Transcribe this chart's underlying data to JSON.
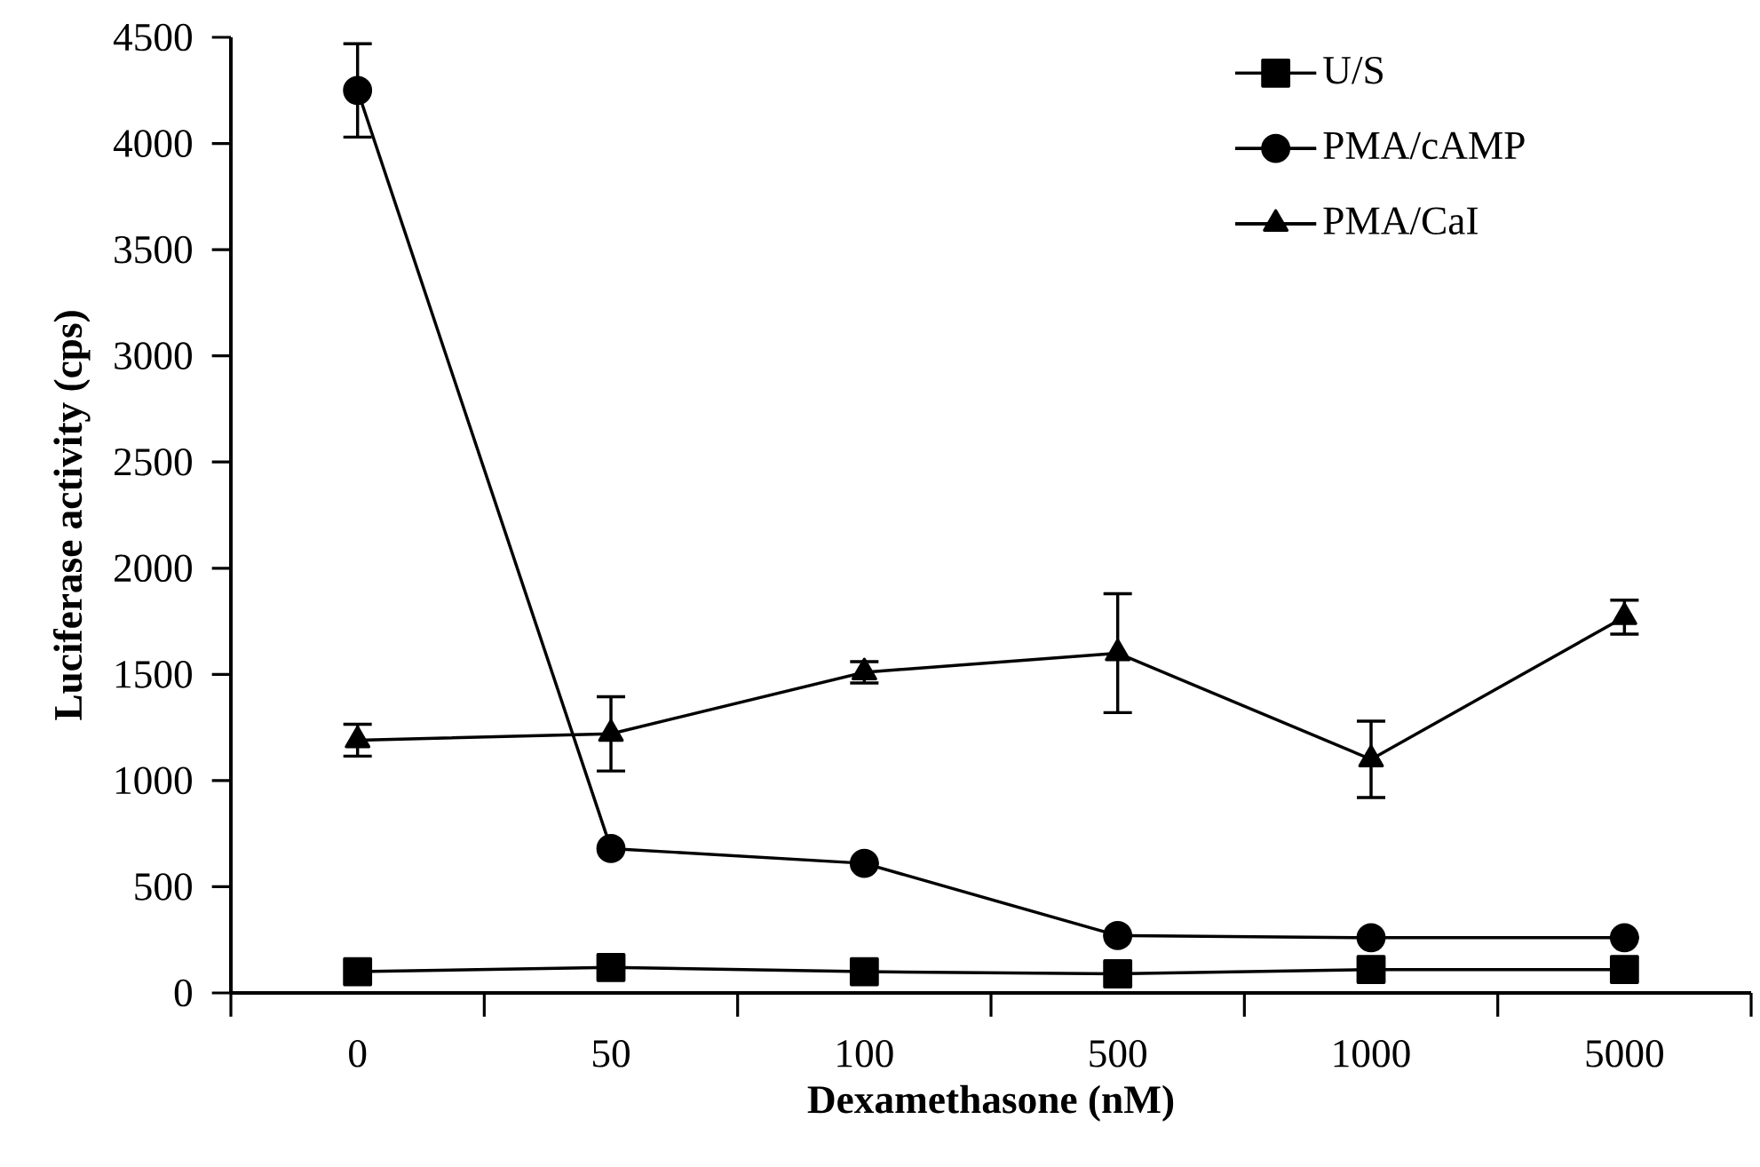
{
  "chart_data": {
    "type": "line",
    "xlabel": "Dexamethasone (nM)",
    "ylabel": "Luciferase activity (cps)",
    "categories": [
      "0",
      "50",
      "100",
      "500",
      "1000",
      "5000"
    ],
    "ylim": [
      0,
      4500
    ],
    "yticks": [
      0,
      500,
      1000,
      1500,
      2000,
      2500,
      3000,
      3500,
      4000,
      4500
    ],
    "grid": false,
    "legend": "top right",
    "line_style": "solid",
    "series": [
      {
        "name": "U/S",
        "color": "#000000",
        "marker": "square",
        "values": [
          100,
          120,
          100,
          90,
          110,
          110
        ]
      },
      {
        "name": "PMA/cAMP",
        "color": "#000000",
        "marker": "circle",
        "values": [
          4250,
          680,
          610,
          270,
          260,
          260
        ],
        "errors": [
          220,
          null,
          null,
          null,
          null,
          null
        ]
      },
      {
        "name": "PMA/CaI",
        "color": "#000000",
        "marker": "triangle",
        "values": [
          1190,
          1220,
          1510,
          1600,
          1100,
          1770
        ],
        "errors": [
          75,
          175,
          50,
          280,
          180,
          80
        ]
      }
    ]
  }
}
